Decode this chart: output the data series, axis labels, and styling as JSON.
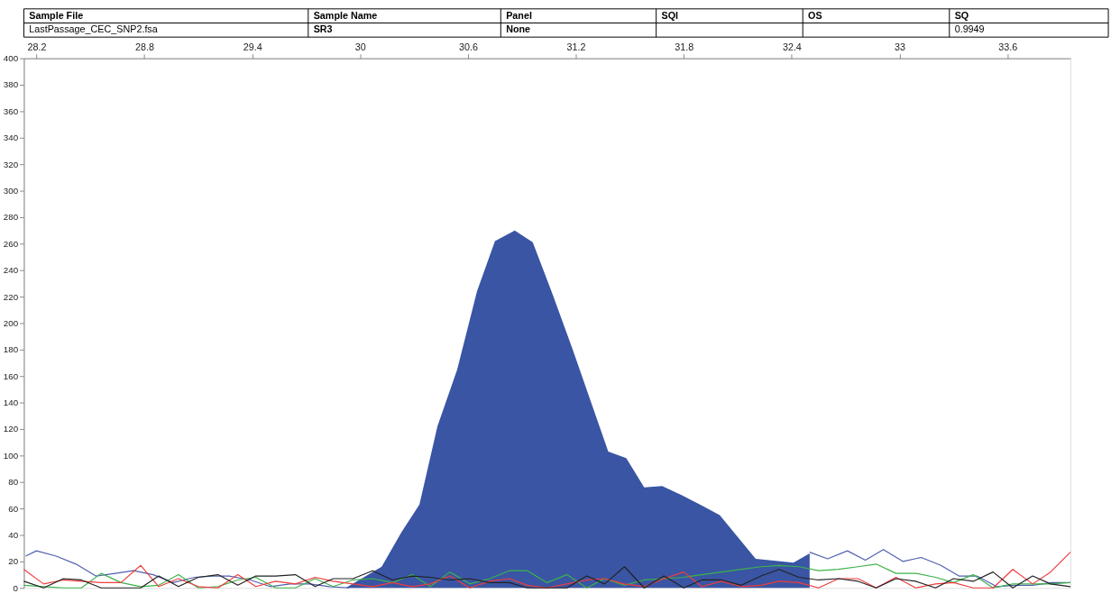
{
  "chart_data": {
    "type": "line",
    "annotations": [
      "Sample File",
      "Sample Name",
      "Panel",
      "SQI",
      "OS",
      "SQ",
      "LastPassage_CEC_SNP2.fsa",
      "SR3",
      "None",
      "0.9949"
    ],
    "x": [
      28.13,
      28.24,
      28.35,
      28.45,
      28.56,
      28.67,
      28.78,
      28.88,
      28.99,
      29.1,
      29.21,
      29.32,
      29.42,
      29.53,
      29.64,
      29.75,
      29.85,
      29.96,
      30.07,
      30.18,
      30.29,
      30.39,
      30.5,
      30.61,
      30.72,
      30.83,
      30.93,
      31.04,
      31.15,
      31.26,
      31.36,
      31.47,
      31.58,
      31.69,
      31.8,
      31.9,
      32.01,
      32.12,
      32.23,
      32.33,
      32.44,
      32.55,
      32.66,
      32.77,
      32.87,
      32.98,
      33.09,
      33.2,
      33.3,
      33.41,
      33.52,
      33.63,
      33.74,
      33.84,
      33.95
    ],
    "series": [
      {
        "type": "area",
        "color": "#3a55a4",
        "x": [
          29.92,
          30.12,
          30.23,
          30.33,
          30.43,
          30.54,
          30.65,
          30.75,
          30.86,
          30.96,
          31.07,
          31.18,
          31.28,
          31.38,
          31.48,
          31.58,
          31.68,
          31.79,
          31.89,
          32.0,
          32.2,
          32.35,
          32.41,
          32.5
        ],
        "values": [
          0,
          16,
          42,
          63,
          122,
          165,
          224,
          262,
          270,
          261,
          222,
          181,
          142,
          103,
          98,
          76,
          77,
          70,
          63,
          55,
          22,
          20,
          19,
          26
        ]
      },
      {
        "color": "#5060b0",
        "x": [
          28.14,
          28.2,
          28.31,
          28.42,
          28.53,
          28.64,
          28.74,
          28.85,
          28.96,
          29.08,
          29.18,
          29.27,
          29.39,
          29.5,
          29.61,
          29.72,
          29.83,
          29.94
        ],
        "values": [
          24,
          28,
          24,
          18,
          9,
          11,
          13,
          10,
          4,
          8,
          9,
          9,
          6,
          1,
          3,
          3,
          1,
          0
        ]
      },
      {
        "color": "#5060b0",
        "x": [
          32.5,
          32.6,
          32.71,
          32.81,
          32.91,
          33.02,
          33.12,
          33.23,
          33.33,
          33.43,
          33.54,
          33.64,
          33.74,
          33.85,
          33.95
        ],
        "values": [
          27,
          22,
          28,
          21,
          29,
          20,
          23,
          17,
          9,
          9,
          1,
          2,
          2,
          4,
          4
        ]
      },
      {
        "color": "#3cb34a",
        "values": [
          2,
          1,
          0,
          0,
          11,
          4,
          1,
          2,
          10,
          0,
          1,
          6,
          8,
          0,
          0,
          7,
          1,
          6,
          7,
          4,
          10,
          1,
          12,
          3,
          7,
          13,
          13,
          4,
          10,
          0,
          7,
          2,
          6,
          7,
          8,
          10,
          12,
          14,
          16,
          17,
          16,
          13,
          14,
          16,
          18,
          11,
          11,
          8,
          4,
          10,
          0,
          3,
          3,
          3,
          4
        ]
      },
      {
        "color": "#f03c3c",
        "values": [
          14,
          3,
          6,
          5,
          4,
          4,
          17,
          1,
          7,
          1,
          0,
          10,
          1,
          5,
          3,
          8,
          5,
          3,
          1,
          4,
          1,
          3,
          9,
          0,
          5,
          7,
          2,
          0,
          3,
          6,
          7,
          3,
          1,
          7,
          12,
          1,
          5,
          1,
          2,
          5,
          4,
          0,
          7,
          7,
          0,
          8,
          0,
          3,
          4,
          0,
          0,
          14,
          3,
          12,
          27
        ]
      },
      {
        "color": "#222222",
        "values": [
          5,
          0,
          7,
          6,
          0,
          0,
          0,
          9,
          1,
          8,
          10,
          2,
          9,
          9,
          10,
          1,
          7,
          7,
          13,
          6,
          9,
          8,
          6,
          7,
          4,
          4,
          0,
          0,
          0,
          9,
          3,
          16,
          0,
          9,
          0,
          6,
          6,
          2,
          9,
          14,
          8,
          6,
          7,
          5,
          0,
          7,
          5,
          0,
          7,
          5,
          12,
          0,
          9,
          3,
          1
        ]
      }
    ],
    "xlim": [
      28.13,
      33.95
    ],
    "xticks": [
      28.2,
      28.8,
      29.4,
      30,
      30.6,
      31.2,
      31.8,
      32.4,
      33,
      33.6
    ],
    "ylim": [
      0,
      400
    ],
    "yticks": [
      0,
      20,
      40,
      60,
      80,
      100,
      120,
      140,
      160,
      180,
      200,
      220,
      240,
      260,
      280,
      300,
      320,
      340,
      360,
      380,
      400
    ],
    "grid": false
  }
}
